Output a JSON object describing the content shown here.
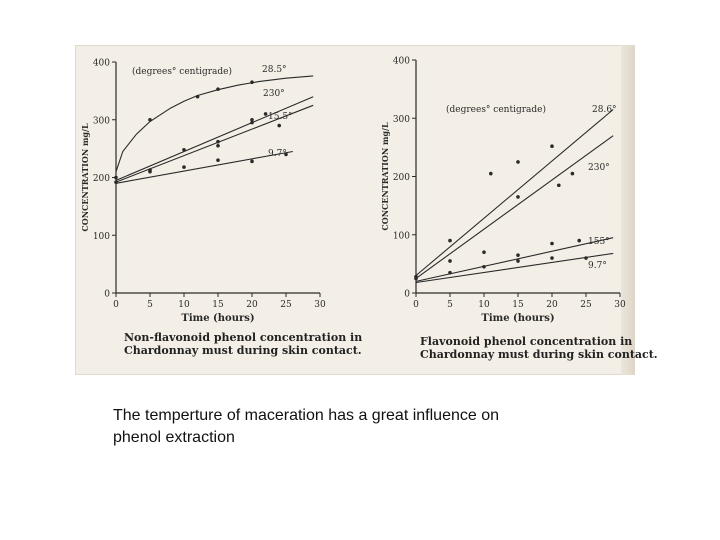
{
  "caption": {
    "line1": "The temperture of maceration has a great influence on",
    "line2": "phenol extraction"
  },
  "colors": {
    "paper": "#f3efe6",
    "ink": "#2a2a2a"
  },
  "chart_data": [
    {
      "type": "scatter",
      "title": "",
      "caption_lines": [
        "Non-flavonoid phenol concentration in",
        "Chardonnay must during skin contact."
      ],
      "xlabel": "Time (hours)",
      "ylabel": "CONCENTRATION mg/L",
      "legend_title": "(degrees° centigrade)",
      "xlim": [
        0,
        30
      ],
      "ylim": [
        0,
        400
      ],
      "xticks": [
        0,
        5,
        10,
        15,
        20,
        25,
        30
      ],
      "yticks": [
        0,
        100,
        200,
        300,
        400
      ],
      "xtick_labels": [
        "0",
        "5",
        "10",
        "15",
        "20",
        "25",
        "30"
      ],
      "grid": false,
      "series": [
        {
          "name": "28.5°",
          "line": [
            [
              0,
              210
            ],
            [
              1,
              245
            ],
            [
              3,
              275
            ],
            [
              5,
              297
            ],
            [
              8,
              320
            ],
            [
              10,
              332
            ],
            [
              12,
              342
            ],
            [
              15,
              352
            ],
            [
              18,
              360
            ],
            [
              21,
              366
            ],
            [
              25,
              372
            ],
            [
              29,
              376
            ]
          ],
          "points": [
            [
              0,
              200
            ],
            [
              5,
              300
            ],
            [
              12,
              340
            ],
            [
              15,
              353
            ],
            [
              20,
              365
            ]
          ]
        },
        {
          "name": "230°",
          "line": [
            [
              0,
              195
            ],
            [
              29,
              340
            ]
          ],
          "points": [
            [
              0,
              192
            ],
            [
              5,
              213
            ],
            [
              10,
              248
            ],
            [
              15,
              262
            ],
            [
              20,
              300
            ],
            [
              22,
              310
            ]
          ]
        },
        {
          "name": "15.5°",
          "line": [
            [
              0,
              192
            ],
            [
              29,
              325
            ]
          ],
          "points": [
            [
              15,
              255
            ],
            [
              20,
              295
            ],
            [
              24,
              290
            ]
          ]
        },
        {
          "name": "9.7°",
          "line": [
            [
              0,
              190
            ],
            [
              26,
              245
            ]
          ],
          "points": [
            [
              5,
              210
            ],
            [
              10,
              218
            ],
            [
              15,
              230
            ],
            [
              20,
              228
            ],
            [
              25,
              240
            ]
          ]
        }
      ]
    },
    {
      "type": "scatter",
      "title": "",
      "caption_lines": [
        "Flavonoid phenol concentration in",
        "Chardonnay must during skin contact."
      ],
      "xlabel": "Time (hours)",
      "ylabel": "CONCENTRATION mg/L",
      "legend_title": "(degrees° centigrade)",
      "xlim": [
        0,
        30
      ],
      "ylim": [
        0,
        400
      ],
      "xticks": [
        0,
        5,
        10,
        15,
        20,
        25,
        30
      ],
      "yticks": [
        0,
        100,
        200,
        300,
        400
      ],
      "xtick_labels": [
        "0",
        "5",
        "10",
        "15",
        "20",
        "25",
        "30"
      ],
      "grid": false,
      "series": [
        {
          "name": "28.6°",
          "line": [
            [
              0,
              30
            ],
            [
              29,
              315
            ]
          ],
          "points": [
            [
              0,
              28
            ],
            [
              5,
              90
            ],
            [
              11,
              205
            ],
            [
              15,
              225
            ],
            [
              20,
              252
            ]
          ]
        },
        {
          "name": "230°",
          "line": [
            [
              0,
              25
            ],
            [
              29,
              270
            ]
          ],
          "points": [
            [
              0,
              25
            ],
            [
              5,
              55
            ],
            [
              10,
              70
            ],
            [
              15,
              165
            ],
            [
              21,
              185
            ],
            [
              23,
              205
            ]
          ]
        },
        {
          "name": "155°",
          "line": [
            [
              0,
              20
            ],
            [
              29,
              95
            ]
          ],
          "points": [
            [
              15,
              65
            ],
            [
              20,
              85
            ],
            [
              24,
              90
            ]
          ]
        },
        {
          "name": "9.7°",
          "line": [
            [
              0,
              18
            ],
            [
              29,
              68
            ]
          ],
          "points": [
            [
              5,
              35
            ],
            [
              10,
              45
            ],
            [
              15,
              55
            ],
            [
              20,
              60
            ],
            [
              25,
              60
            ]
          ]
        }
      ]
    }
  ]
}
